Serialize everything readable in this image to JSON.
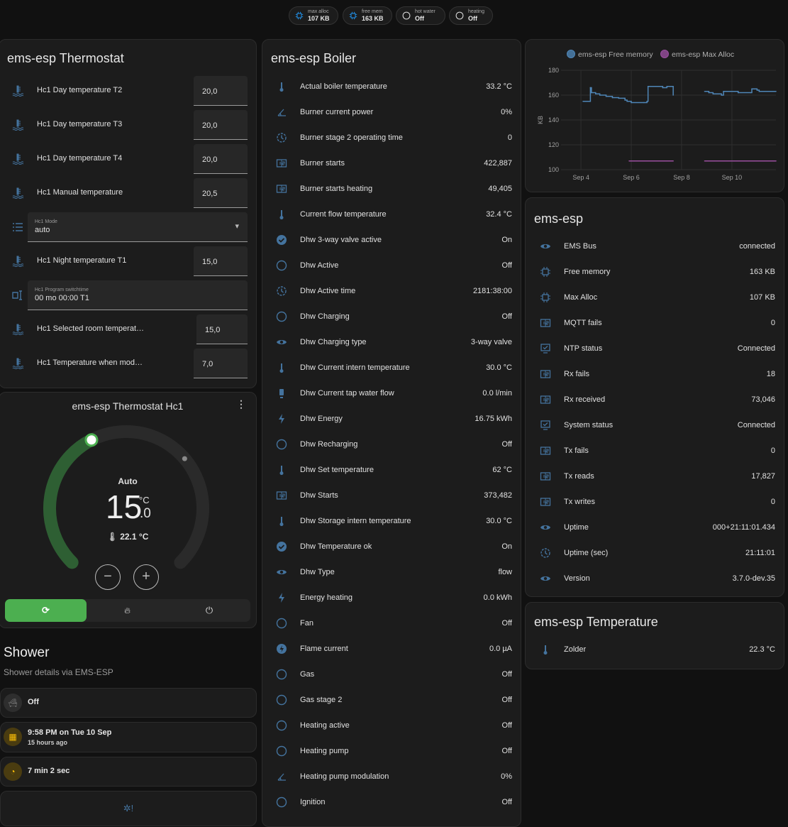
{
  "chips": [
    {
      "label": "max alloc",
      "value": "107 KB",
      "icon": "chip-icon"
    },
    {
      "label": "free mem",
      "value": "163 KB",
      "icon": "chip-icon"
    },
    {
      "label": "hot water",
      "value": "Off",
      "icon": "circle-outline-icon"
    },
    {
      "label": "heating",
      "value": "Off",
      "icon": "circle-outline-icon"
    }
  ],
  "thermostat": {
    "title": "ems-esp Thermostat",
    "rows": [
      {
        "type": "number",
        "icon": "coolant-temperature",
        "name": "Hc1 Day temperature T2",
        "value": "20,0"
      },
      {
        "type": "number",
        "icon": "coolant-temperature",
        "name": "Hc1 Day temperature T3",
        "value": "20,0"
      },
      {
        "type": "number",
        "icon": "coolant-temperature",
        "name": "Hc1 Day temperature T4",
        "value": "20,0"
      },
      {
        "type": "number",
        "icon": "coolant-temperature",
        "name": "Hc1 Manual temperature",
        "value": "20,5"
      },
      {
        "type": "select",
        "icon": "format-list",
        "name": "Hc1 Mode",
        "value": "auto"
      },
      {
        "type": "number",
        "icon": "coolant-temperature",
        "name": "Hc1 Night temperature T1",
        "value": "15,0"
      },
      {
        "type": "text",
        "icon": "text-field",
        "name": "Hc1 Program switchtime",
        "value": "00 mo 00:00 T1"
      },
      {
        "type": "number",
        "icon": "coolant-temperature",
        "name": "Hc1 Selected room temperat…",
        "value": "15,0"
      },
      {
        "type": "number",
        "icon": "coolant-temperature",
        "name": "Hc1 Temperature when mod…",
        "value": "7,0"
      }
    ]
  },
  "climate": {
    "title": "ems-esp Thermostat Hc1",
    "mode": "Auto",
    "target_int": "15",
    "target_dec": ".0",
    "unit": "°C",
    "target": 15.0,
    "current": 22.1,
    "current_label": "22.1 °C",
    "modes": [
      {
        "icon": "thermostat-auto",
        "active": true
      },
      {
        "icon": "fire",
        "active": false
      },
      {
        "icon": "power",
        "active": false
      }
    ],
    "accent": "#4caf50"
  },
  "shower": {
    "title": "Shower",
    "subtitle": "Shower details via EMS-ESP",
    "tiles": [
      {
        "icon": "bathtub",
        "primary": "Off",
        "secondary": ""
      },
      {
        "icon": "calendar",
        "primary": "9:58 PM on Tue 10 Sep",
        "secondary": "15 hours ago"
      },
      {
        "icon": "timer",
        "primary": "7 min 2 sec",
        "secondary": ""
      }
    ]
  },
  "boiler": {
    "title": "ems-esp Boiler",
    "rows": [
      {
        "icon": "thermometer",
        "name": "Actual boiler temperature",
        "value": "33.2 °C"
      },
      {
        "icon": "angle",
        "name": "Burner current power",
        "value": "0%"
      },
      {
        "icon": "clock",
        "name": "Burner stage 2 operating time",
        "value": "0"
      },
      {
        "icon": "counter",
        "name": "Burner starts",
        "value": "422,887"
      },
      {
        "icon": "counter",
        "name": "Burner starts heating",
        "value": "49,405"
      },
      {
        "icon": "thermometer",
        "name": "Current flow temperature",
        "value": "32.4 °C"
      },
      {
        "icon": "check-circle",
        "name": "Dhw 3-way valve active",
        "value": "On"
      },
      {
        "icon": "circle",
        "name": "Dhw Active",
        "value": "Off"
      },
      {
        "icon": "clock",
        "name": "Dhw Active time",
        "value": "2181:38:00"
      },
      {
        "icon": "circle",
        "name": "Dhw Charging",
        "value": "Off"
      },
      {
        "icon": "eye",
        "name": "Dhw Charging type",
        "value": "3-way valve"
      },
      {
        "icon": "thermometer",
        "name": "Dhw Current intern temperature",
        "value": "30.0 °C"
      },
      {
        "icon": "pump",
        "name": "Dhw Current tap water flow",
        "value": "0.0 l/min"
      },
      {
        "icon": "flash",
        "name": "Dhw Energy",
        "value": "16.75 kWh"
      },
      {
        "icon": "circle",
        "name": "Dhw Recharging",
        "value": "Off"
      },
      {
        "icon": "thermometer",
        "name": "Dhw Set temperature",
        "value": "62 °C"
      },
      {
        "icon": "counter",
        "name": "Dhw Starts",
        "value": "373,482"
      },
      {
        "icon": "thermometer",
        "name": "Dhw Storage intern temperature",
        "value": "30.0 °C"
      },
      {
        "icon": "check-circle",
        "name": "Dhw Temperature ok",
        "value": "On"
      },
      {
        "icon": "eye",
        "name": "Dhw Type",
        "value": "flow"
      },
      {
        "icon": "flash",
        "name": "Energy heating",
        "value": "0.0 kWh"
      },
      {
        "icon": "circle",
        "name": "Fan",
        "value": "Off"
      },
      {
        "icon": "flash-circle",
        "name": "Flame current",
        "value": "0.0 µA"
      },
      {
        "icon": "circle",
        "name": "Gas",
        "value": "Off"
      },
      {
        "icon": "circle",
        "name": "Gas stage 2",
        "value": "Off"
      },
      {
        "icon": "circle",
        "name": "Heating active",
        "value": "Off"
      },
      {
        "icon": "circle",
        "name": "Heating pump",
        "value": "Off"
      },
      {
        "icon": "angle",
        "name": "Heating pump modulation",
        "value": "0%"
      },
      {
        "icon": "circle",
        "name": "Ignition",
        "value": "Off"
      }
    ]
  },
  "chart_data": {
    "type": "line",
    "ylabel": "KB",
    "ylim": [
      100,
      180
    ],
    "yticks": [
      100,
      120,
      140,
      160,
      180
    ],
    "xticks": [
      {
        "x": "09-04",
        "label": "Sep 4"
      },
      {
        "x": "09-06",
        "label": "Sep 6"
      },
      {
        "x": "09-08",
        "label": "Sep 8"
      },
      {
        "x": "09-10",
        "label": "Sep 10"
      }
    ],
    "xlim": [
      "09-03T05:00",
      "09-11T18:00"
    ],
    "grid": true,
    "legend": "top",
    "series": [
      {
        "name": "ems-esp Free memory",
        "color": "#4f86b7",
        "step": true,
        "points": [
          [
            "09-04T02:00",
            155
          ],
          [
            "09-04T08:00",
            155
          ],
          [
            "09-04T09:00",
            166
          ],
          [
            "09-04T10:00",
            162
          ],
          [
            "09-04T14:00",
            161
          ],
          [
            "09-04T18:00",
            160
          ],
          [
            "09-05T00:00",
            159
          ],
          [
            "09-05T06:00",
            158
          ],
          [
            "09-05T12:00",
            157.5
          ],
          [
            "09-05T18:00",
            156
          ],
          [
            "09-05T20:00",
            155
          ],
          [
            "09-06T00:00",
            154
          ],
          [
            "09-06T12:00",
            154
          ],
          [
            "09-06T15:00",
            155
          ],
          [
            "09-06T16:00",
            167
          ],
          [
            "09-07T06:00",
            166
          ],
          [
            "09-07T10:00",
            167
          ],
          [
            "09-07T15:00",
            167
          ],
          [
            "09-07T16:00",
            160
          ],
          null,
          [
            "09-08T22:00",
            163
          ],
          [
            "09-09T02:00",
            162
          ],
          [
            "09-09T06:00",
            161
          ],
          [
            "09-09T14:00",
            160
          ],
          [
            "09-09T16:00",
            163
          ],
          [
            "09-10T00:00",
            163
          ],
          [
            "09-10T06:00",
            162
          ],
          [
            "09-10T18:00",
            162
          ],
          [
            "09-10T19:00",
            165
          ],
          [
            "09-11T00:00",
            164
          ],
          [
            "09-11T02:00",
            163
          ],
          [
            "09-11T18:00",
            163
          ]
        ]
      },
      {
        "name": "ems-esp Max Alloc",
        "color": "#9a4f9f",
        "step": true,
        "points": [
          [
            "09-05T22:00",
            107
          ],
          [
            "09-07T16:00",
            107
          ],
          null,
          [
            "09-08T22:00",
            107
          ],
          [
            "09-11T18:00",
            107
          ]
        ]
      }
    ]
  },
  "system": {
    "title": "ems-esp",
    "rows": [
      {
        "icon": "eye",
        "name": "EMS Bus",
        "value": "connected"
      },
      {
        "icon": "chip",
        "name": "Free memory",
        "value": "163 KB"
      },
      {
        "icon": "chip",
        "name": "Max Alloc",
        "value": "107 KB"
      },
      {
        "icon": "counter",
        "name": "MQTT fails",
        "value": "0"
      },
      {
        "icon": "monitor-check",
        "name": "NTP status",
        "value": "Connected"
      },
      {
        "icon": "counter",
        "name": "Rx fails",
        "value": "18"
      },
      {
        "icon": "counter",
        "name": "Rx received",
        "value": "73,046"
      },
      {
        "icon": "monitor-check",
        "name": "System status",
        "value": "Connected"
      },
      {
        "icon": "counter",
        "name": "Tx fails",
        "value": "0"
      },
      {
        "icon": "counter",
        "name": "Tx reads",
        "value": "17,827"
      },
      {
        "icon": "counter",
        "name": "Tx writes",
        "value": "0"
      },
      {
        "icon": "eye",
        "name": "Uptime",
        "value": "000+21:11:01.434"
      },
      {
        "icon": "clock",
        "name": "Uptime (sec)",
        "value": "21:11:01"
      },
      {
        "icon": "eye",
        "name": "Version",
        "value": "3.7.0-dev.35"
      }
    ]
  },
  "temperature": {
    "title": "ems-esp Temperature",
    "rows": [
      {
        "icon": "thermometer",
        "name": "Zolder",
        "value": "22.3 °C"
      }
    ]
  }
}
